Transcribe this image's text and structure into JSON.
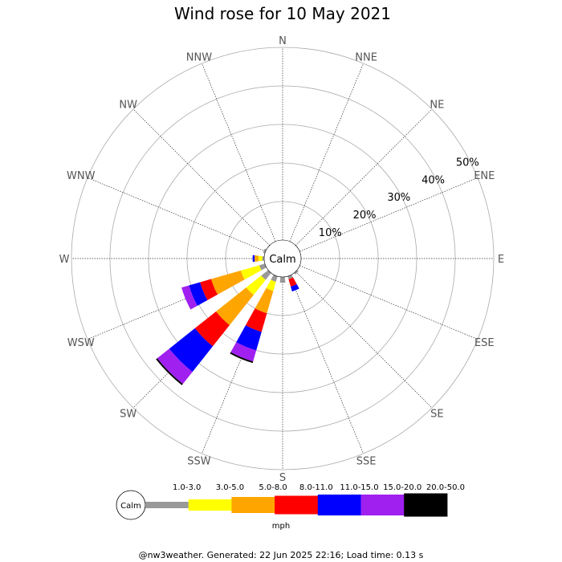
{
  "chart_data": {
    "type": "wind-rose",
    "title": "Wind rose for 10 May 2021",
    "directions": [
      "N",
      "NNE",
      "NE",
      "ENE",
      "E",
      "ESE",
      "SE",
      "SSE",
      "S",
      "SSW",
      "SW",
      "WSW",
      "W",
      "WNW",
      "NW",
      "NNW"
    ],
    "ring_labels": [
      "10%",
      "20%",
      "30%",
      "40%",
      "50%"
    ],
    "ring_values": [
      10,
      20,
      30,
      40,
      50
    ],
    "calm_label": "Calm",
    "speed_bins": [
      {
        "label": "1.0-3.0",
        "color": "#999999"
      },
      {
        "label": "3.0-5.0",
        "color": "#ffff00"
      },
      {
        "label": "5.0-8.0",
        "color": "#ffa500"
      },
      {
        "label": "8.0-11.0",
        "color": "#ff0000"
      },
      {
        "label": "11.0-15.0",
        "color": "#0000ff"
      },
      {
        "label": "15.0-20.0",
        "color": "#a020f0"
      },
      {
        "label": "20.0-50.0",
        "color": "#000000"
      }
    ],
    "unit_label": "mph",
    "series": [
      {
        "direction": "SE",
        "values": [
          0.5,
          0,
          0,
          0,
          0,
          0,
          0
        ]
      },
      {
        "direction": "SSE",
        "values": [
          0.8,
          0,
          0,
          2,
          1.3,
          0,
          0
        ]
      },
      {
        "direction": "S",
        "values": [
          1.5,
          0,
          0,
          0,
          0,
          0,
          0
        ]
      },
      {
        "direction": "SSW",
        "values": [
          1.5,
          2.5,
          6,
          5,
          5,
          3,
          0.4
        ]
      },
      {
        "direction": "SW",
        "values": [
          2.3,
          5,
          10,
          7,
          8.5,
          4,
          0.4
        ]
      },
      {
        "direction": "WSW",
        "values": [
          1.5,
          5,
          8,
          3,
          3,
          2,
          0
        ]
      },
      {
        "direction": "W",
        "values": [
          0.5,
          1,
          1,
          0,
          0.5,
          0,
          0
        ]
      },
      {
        "direction": "WNW",
        "values": [
          0.5,
          0,
          0,
          0,
          0,
          0,
          0
        ]
      }
    ]
  },
  "footer": "@nw3weather. Generated: 22 Jun 2025 22:16; Load time: 0.13 s"
}
